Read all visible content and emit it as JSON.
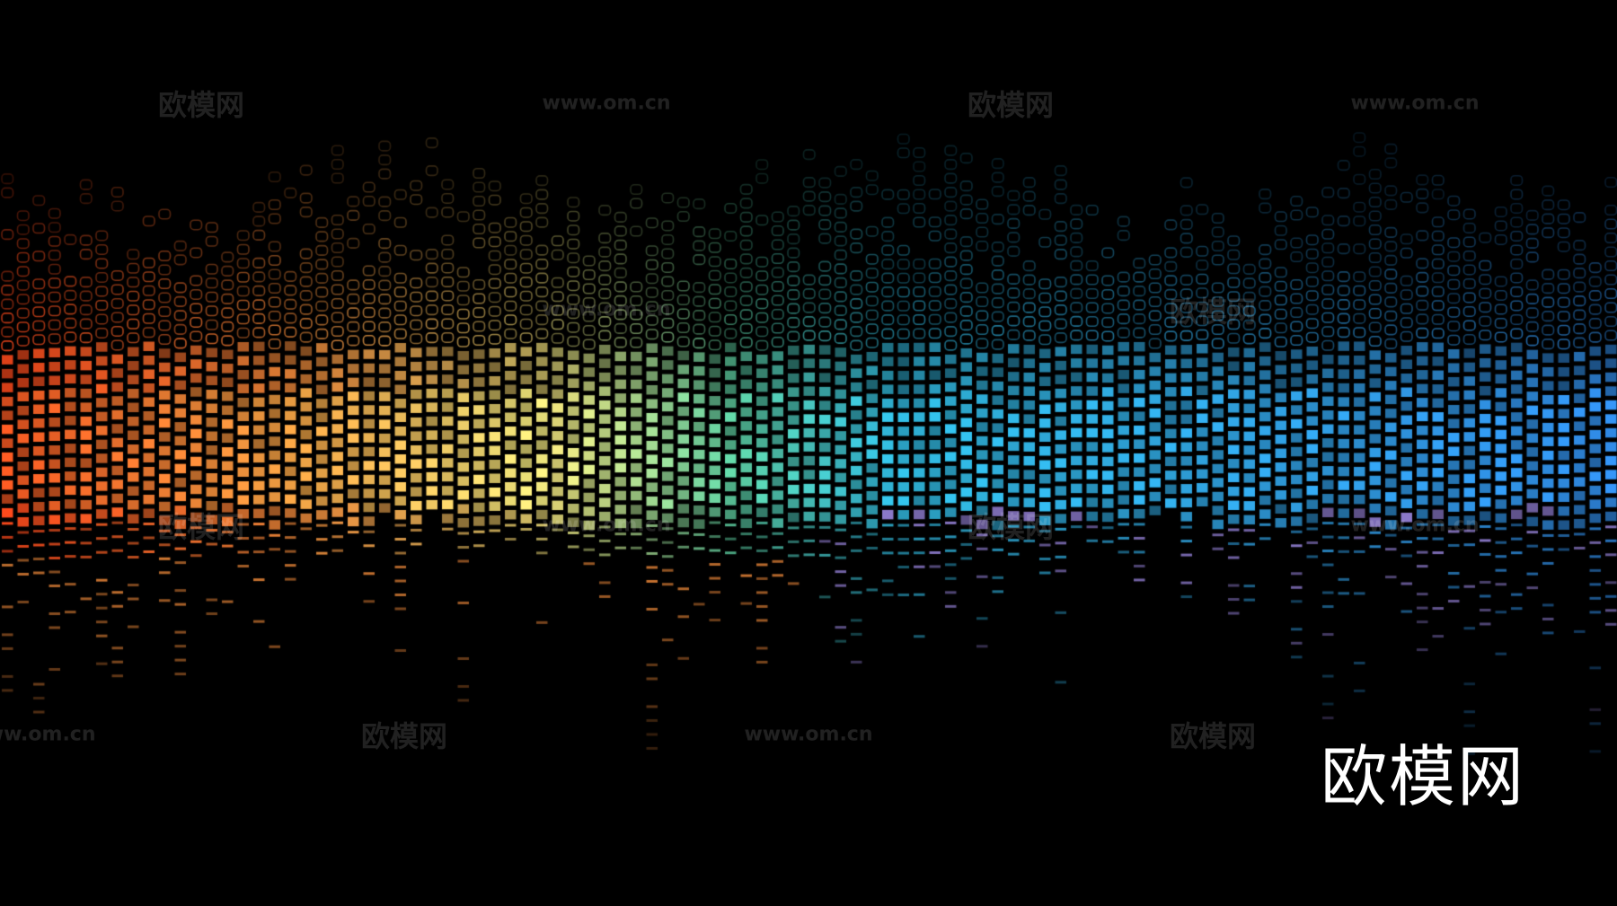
{
  "watermark": {
    "brand": "欧模网",
    "url": "www.om.cn"
  },
  "logo": "欧模网",
  "palette": {
    "background": "#000000",
    "red": "#ff4a1c",
    "orange": "#f08a3a",
    "yellow": "#d8c56a",
    "green": "#4fb08a",
    "teal": "#2aa0c0",
    "blue": "#2a78c8",
    "violet": "#8a78c8"
  }
}
